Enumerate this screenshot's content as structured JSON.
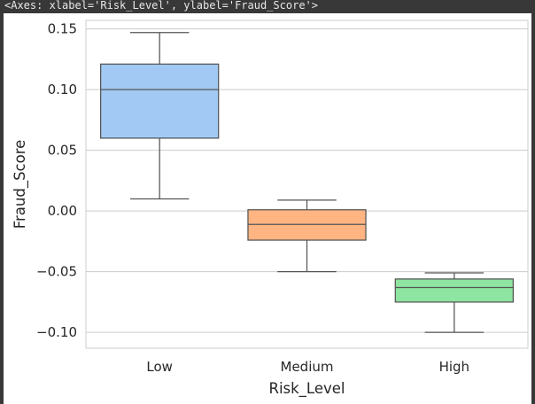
{
  "header": {
    "repr_text": "<Axes: xlabel='Risk_Level', ylabel='Fraud_Score'>"
  },
  "chart_data": {
    "type": "box",
    "title": "",
    "xlabel": "Risk_Level",
    "ylabel": "Fraud_Score",
    "categories": [
      "Low",
      "Medium",
      "High"
    ],
    "ylim": [
      -0.113,
      0.157
    ],
    "yticks": [
      0.15,
      0.1,
      0.05,
      0.0,
      -0.05,
      -0.1
    ],
    "ytick_labels": [
      "0.15",
      "0.10",
      "0.05",
      "0.00",
      "−0.05",
      "−0.10"
    ],
    "grid": true,
    "boxes": [
      {
        "category": "Low",
        "whisker_low": 0.01,
        "q1": 0.06,
        "median": 0.1,
        "q3": 0.121,
        "whisker_high": 0.147,
        "color": "#a1c9f4"
      },
      {
        "category": "Medium",
        "whisker_low": -0.05,
        "q1": -0.024,
        "median": -0.011,
        "q3": 0.001,
        "whisker_high": 0.009,
        "color": "#ffb482"
      },
      {
        "category": "High",
        "whisker_low": -0.1,
        "q1": -0.075,
        "median": -0.063,
        "q3": -0.056,
        "whisker_high": -0.051,
        "color": "#8de5a1"
      }
    ]
  }
}
